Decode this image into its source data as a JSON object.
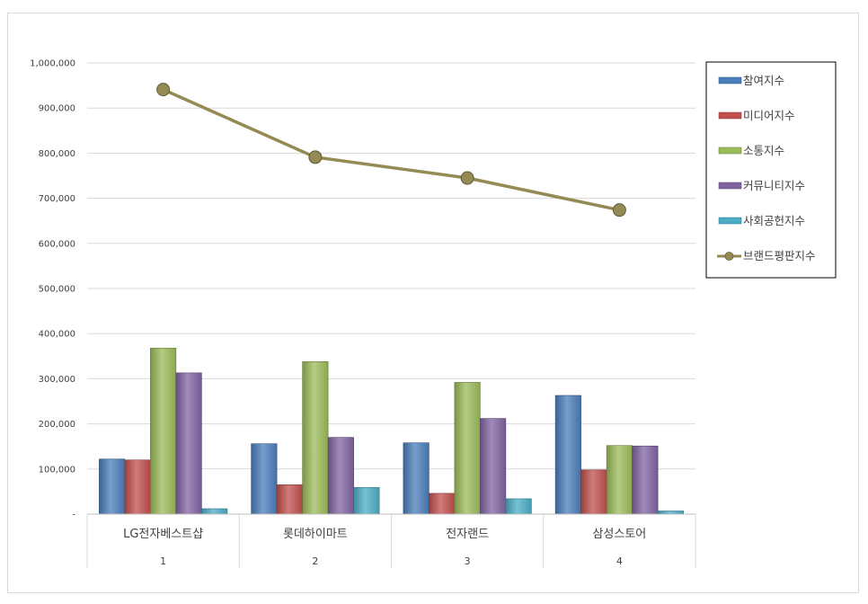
{
  "chart_data": {
    "type": "bar",
    "categories": [
      "LG전자베스트샵",
      "롯데하이마트",
      "전자랜드",
      "삼성스토어"
    ],
    "category_index": [
      "1",
      "2",
      "3",
      "4"
    ],
    "ylim": [
      0,
      1000000
    ],
    "yticks": [
      {
        "value": 0,
        "label": "-"
      },
      {
        "value": 100000,
        "label": "100,000"
      },
      {
        "value": 200000,
        "label": "200,000"
      },
      {
        "value": 300000,
        "label": "300,000"
      },
      {
        "value": 400000,
        "label": "400,000"
      },
      {
        "value": 500000,
        "label": "500,000"
      },
      {
        "value": 600000,
        "label": "600,000"
      },
      {
        "value": 700000,
        "label": "700,000"
      },
      {
        "value": 800000,
        "label": "800,000"
      },
      {
        "value": 900000,
        "label": "900,000"
      },
      {
        "value": 1000000,
        "label": "1,000,000"
      }
    ],
    "grid": true,
    "legend": "right",
    "series": [
      {
        "name": "참여지수",
        "kind": "bar",
        "color": "#4a7ebb",
        "values": [
          122000,
          156000,
          158000,
          263000
        ]
      },
      {
        "name": "미디어지수",
        "kind": "bar",
        "color": "#c0504d",
        "values": [
          120000,
          65000,
          46000,
          98000
        ]
      },
      {
        "name": "소통지수",
        "kind": "bar",
        "color": "#9bbb59",
        "values": [
          368000,
          338000,
          292000,
          152000
        ]
      },
      {
        "name": "커뮤니티지수",
        "kind": "bar",
        "color": "#8064a2",
        "values": [
          313000,
          170000,
          212000,
          151000
        ]
      },
      {
        "name": "사회공헌지수",
        "kind": "bar",
        "color": "#4bacc6",
        "values": [
          12000,
          59000,
          34000,
          7000
        ]
      },
      {
        "name": "브랜드평판지수",
        "kind": "line",
        "color": "#948a54",
        "values": [
          941000,
          791000,
          745000,
          674000
        ]
      }
    ]
  }
}
